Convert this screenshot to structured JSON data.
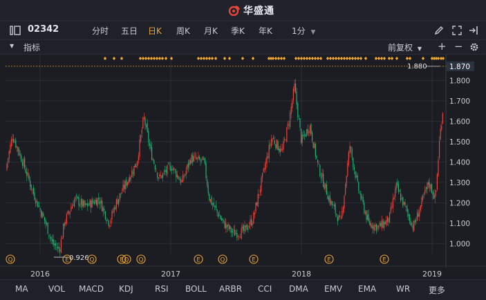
{
  "app": {
    "title": "华盛通"
  },
  "toolbar": {
    "stock_code": "02342",
    "periods": [
      {
        "label": "分时",
        "active": false
      },
      {
        "label": "五日",
        "active": false
      },
      {
        "label": "日K",
        "active": true
      },
      {
        "label": "周K",
        "active": false
      },
      {
        "label": "月K",
        "active": false
      },
      {
        "label": "季K",
        "active": false
      },
      {
        "label": "年K",
        "active": false
      }
    ],
    "minute_select": "1分"
  },
  "indicator_bar": {
    "label": "指标",
    "adjust": "前复权"
  },
  "chart_data": {
    "type": "candlestick",
    "x_labels": [
      "2016",
      "2017",
      "2018",
      "2019"
    ],
    "y_ticks": [
      "1.870",
      "1.800",
      "1.700",
      "1.600",
      "1.500",
      "1.400",
      "1.300",
      "1.200",
      "1.100",
      "1.000"
    ],
    "ylim": [
      0.95,
      1.9
    ],
    "current_price": "1.870",
    "max_label": "1.880",
    "min_label": "0.926",
    "event_markers": [
      "Q",
      "E",
      "Q",
      "E",
      "Q",
      "Q",
      "E",
      "Q",
      "E",
      "E",
      "E"
    ],
    "colors": {
      "up": "#e8453c",
      "down": "#21b573",
      "accent": "#f0a832",
      "background": "#1b1d22"
    }
  },
  "bottom_tabs": [
    "MA",
    "VOL",
    "MACD",
    "KDJ",
    "RSI",
    "BOLL",
    "ARBR",
    "CCI",
    "DMA",
    "EMV",
    "EMA",
    "WR",
    "更多"
  ]
}
